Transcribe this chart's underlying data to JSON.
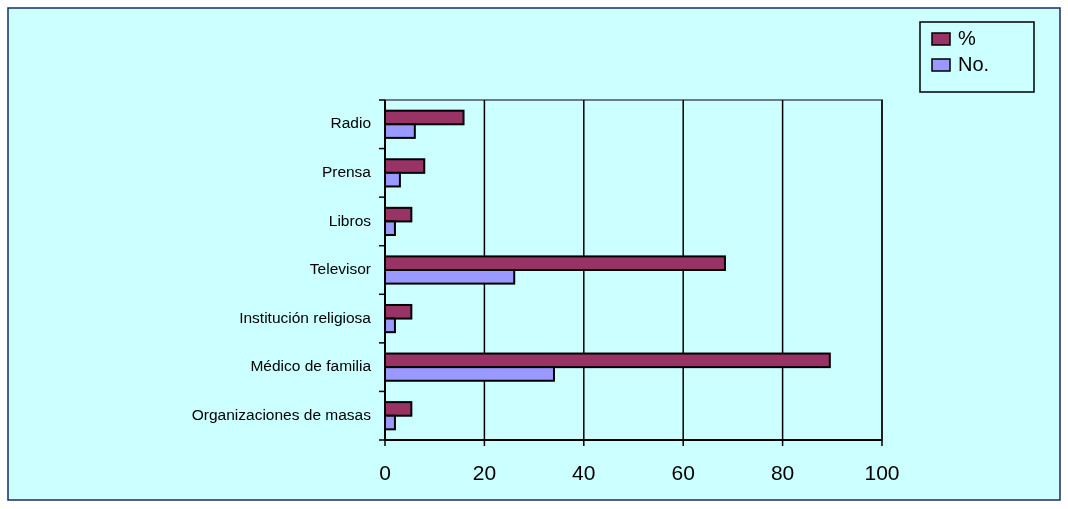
{
  "chart_data": {
    "type": "bar",
    "orientation": "horizontal",
    "categories": [
      "Radio",
      "Prensa",
      "Libros",
      "Televisor",
      "Institución religiosa",
      "Médico de familia",
      "Organizaciones de masas"
    ],
    "series": [
      {
        "name": "%",
        "color": "#993366",
        "values": [
          15.8,
          7.9,
          5.3,
          68.4,
          5.3,
          89.5,
          5.3
        ]
      },
      {
        "name": "No.",
        "color": "#9999ff",
        "values": [
          6,
          3,
          2,
          26,
          2,
          34,
          2
        ]
      }
    ],
    "xlim": [
      0,
      100
    ],
    "xticks": [
      0,
      20,
      40,
      60,
      80,
      100
    ],
    "grid": "x",
    "legend": "top right"
  }
}
